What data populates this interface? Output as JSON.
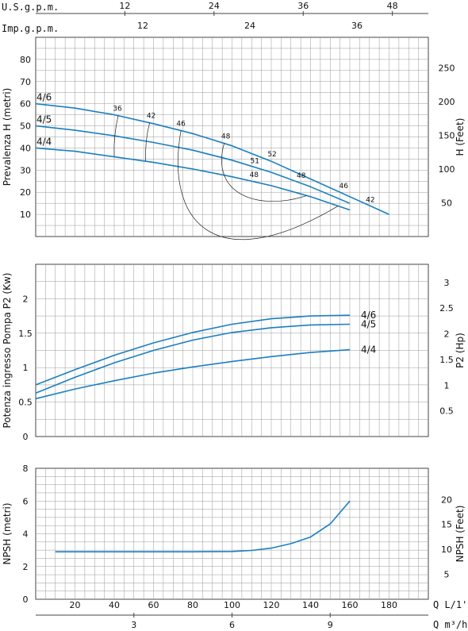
{
  "chart_data": [
    {
      "type": "line",
      "ylabel_left": "Prevalenza H (metri)",
      "ylabel_right": "H (Feet)",
      "ylim": [
        0,
        90
      ],
      "yticks": [
        10,
        20,
        30,
        40,
        50,
        60,
        70,
        80
      ],
      "yticks_right": [
        50,
        100,
        150,
        200,
        250
      ],
      "top_axis_usgpm": {
        "label": "U.S.g.p.m.",
        "ticks": [
          12,
          24,
          36,
          48
        ]
      },
      "top_axis_impgpm": {
        "label": "Imp.g.p.m.",
        "ticks": [
          12,
          24,
          36
        ]
      },
      "series": [
        {
          "name": "4/6",
          "x": [
            0,
            20,
            40,
            60,
            80,
            100,
            120,
            140,
            160,
            180
          ],
          "y": [
            60,
            58,
            55,
            51,
            46.5,
            41,
            34,
            26,
            18,
            10
          ]
        },
        {
          "name": "4/5",
          "x": [
            0,
            20,
            40,
            60,
            80,
            100,
            120,
            140,
            160
          ],
          "y": [
            50,
            48,
            45.5,
            42.5,
            39,
            34.5,
            29,
            22.5,
            15
          ]
        },
        {
          "name": "4/4",
          "x": [
            0,
            20,
            40,
            60,
            80,
            100,
            120,
            140,
            160
          ],
          "y": [
            40,
            38.5,
            36,
            33.5,
            30.5,
            27,
            23,
            18,
            12
          ]
        }
      ],
      "efficiency_labels": [
        "36",
        "42",
        "46",
        "48",
        "52",
        "51",
        "48",
        "48",
        "46",
        "42"
      ]
    },
    {
      "type": "line",
      "ylabel_left": "Potenza ingresso Pompa P2 (Kw)",
      "ylabel_right": "P2 (Hp)",
      "ylim": [
        0,
        2.5
      ],
      "yticks": [
        0,
        0.5,
        1,
        1.5,
        2
      ],
      "yticks_right": [
        0.5,
        1,
        1.5,
        2,
        2.5,
        3
      ],
      "series": [
        {
          "name": "4/6",
          "x": [
            0,
            20,
            40,
            60,
            80,
            100,
            120,
            140,
            160
          ],
          "y": [
            0.75,
            0.97,
            1.18,
            1.36,
            1.51,
            1.63,
            1.71,
            1.75,
            1.76
          ]
        },
        {
          "name": "4/5",
          "x": [
            0,
            20,
            40,
            60,
            80,
            100,
            120,
            140,
            160
          ],
          "y": [
            0.63,
            0.86,
            1.07,
            1.25,
            1.4,
            1.51,
            1.58,
            1.62,
            1.63
          ]
        },
        {
          "name": "4/4",
          "x": [
            0,
            20,
            40,
            60,
            80,
            100,
            120,
            140,
            160
          ],
          "y": [
            0.55,
            0.69,
            0.81,
            0.92,
            1.01,
            1.09,
            1.16,
            1.22,
            1.26
          ]
        }
      ]
    },
    {
      "type": "line",
      "ylabel_left": "NPSH (metri)",
      "ylabel_right": "NPSH (Feet)",
      "ylim": [
        0,
        8
      ],
      "yticks": [
        0,
        2,
        4,
        6,
        8
      ],
      "yticks_right": [
        5,
        10,
        15,
        20
      ],
      "xlabel": "Q  L/1'",
      "xticks": [
        20,
        40,
        60,
        80,
        100,
        120,
        140,
        160,
        180
      ],
      "xlabel2": "Q  m³/h",
      "xticks2": [
        3,
        6,
        9
      ],
      "series": [
        {
          "name": "NPSH",
          "x": [
            10,
            40,
            80,
            100,
            110,
            120,
            130,
            140,
            150,
            160
          ],
          "y": [
            2.9,
            2.9,
            2.9,
            2.92,
            2.98,
            3.12,
            3.4,
            3.8,
            4.6,
            6.0
          ]
        }
      ]
    }
  ]
}
